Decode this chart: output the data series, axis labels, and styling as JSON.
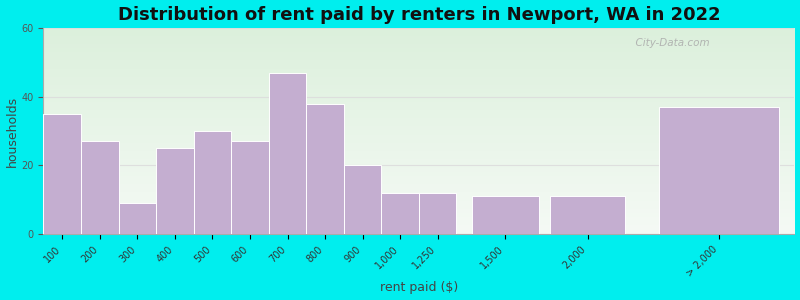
{
  "title": "Distribution of rent paid by renters in Newport, WA in 2022",
  "xlabel": "rent paid ($)",
  "ylabel": "households",
  "categories": [
    "100",
    "200",
    "300",
    "400",
    "500",
    "600",
    "700",
    "800",
    "900",
    "1,000",
    "1,250",
    "1,500",
    "2,000",
    "> 2,000"
  ],
  "values": [
    35,
    27,
    9,
    25,
    30,
    27,
    47,
    38,
    20,
    12,
    12,
    11,
    11,
    37
  ],
  "bar_color": "#C4AED0",
  "bar_edge_color": "#ffffff",
  "ylim": [
    0,
    60
  ],
  "yticks": [
    0,
    20,
    40,
    60
  ],
  "bg_outer": "#00EEEE",
  "bg_plot_green": "#dff0d8",
  "bg_plot_white": "#f8f8f8",
  "title_fontsize": 13,
  "axis_label_fontsize": 9,
  "tick_fontsize": 7,
  "watermark": "  City-Data.com"
}
